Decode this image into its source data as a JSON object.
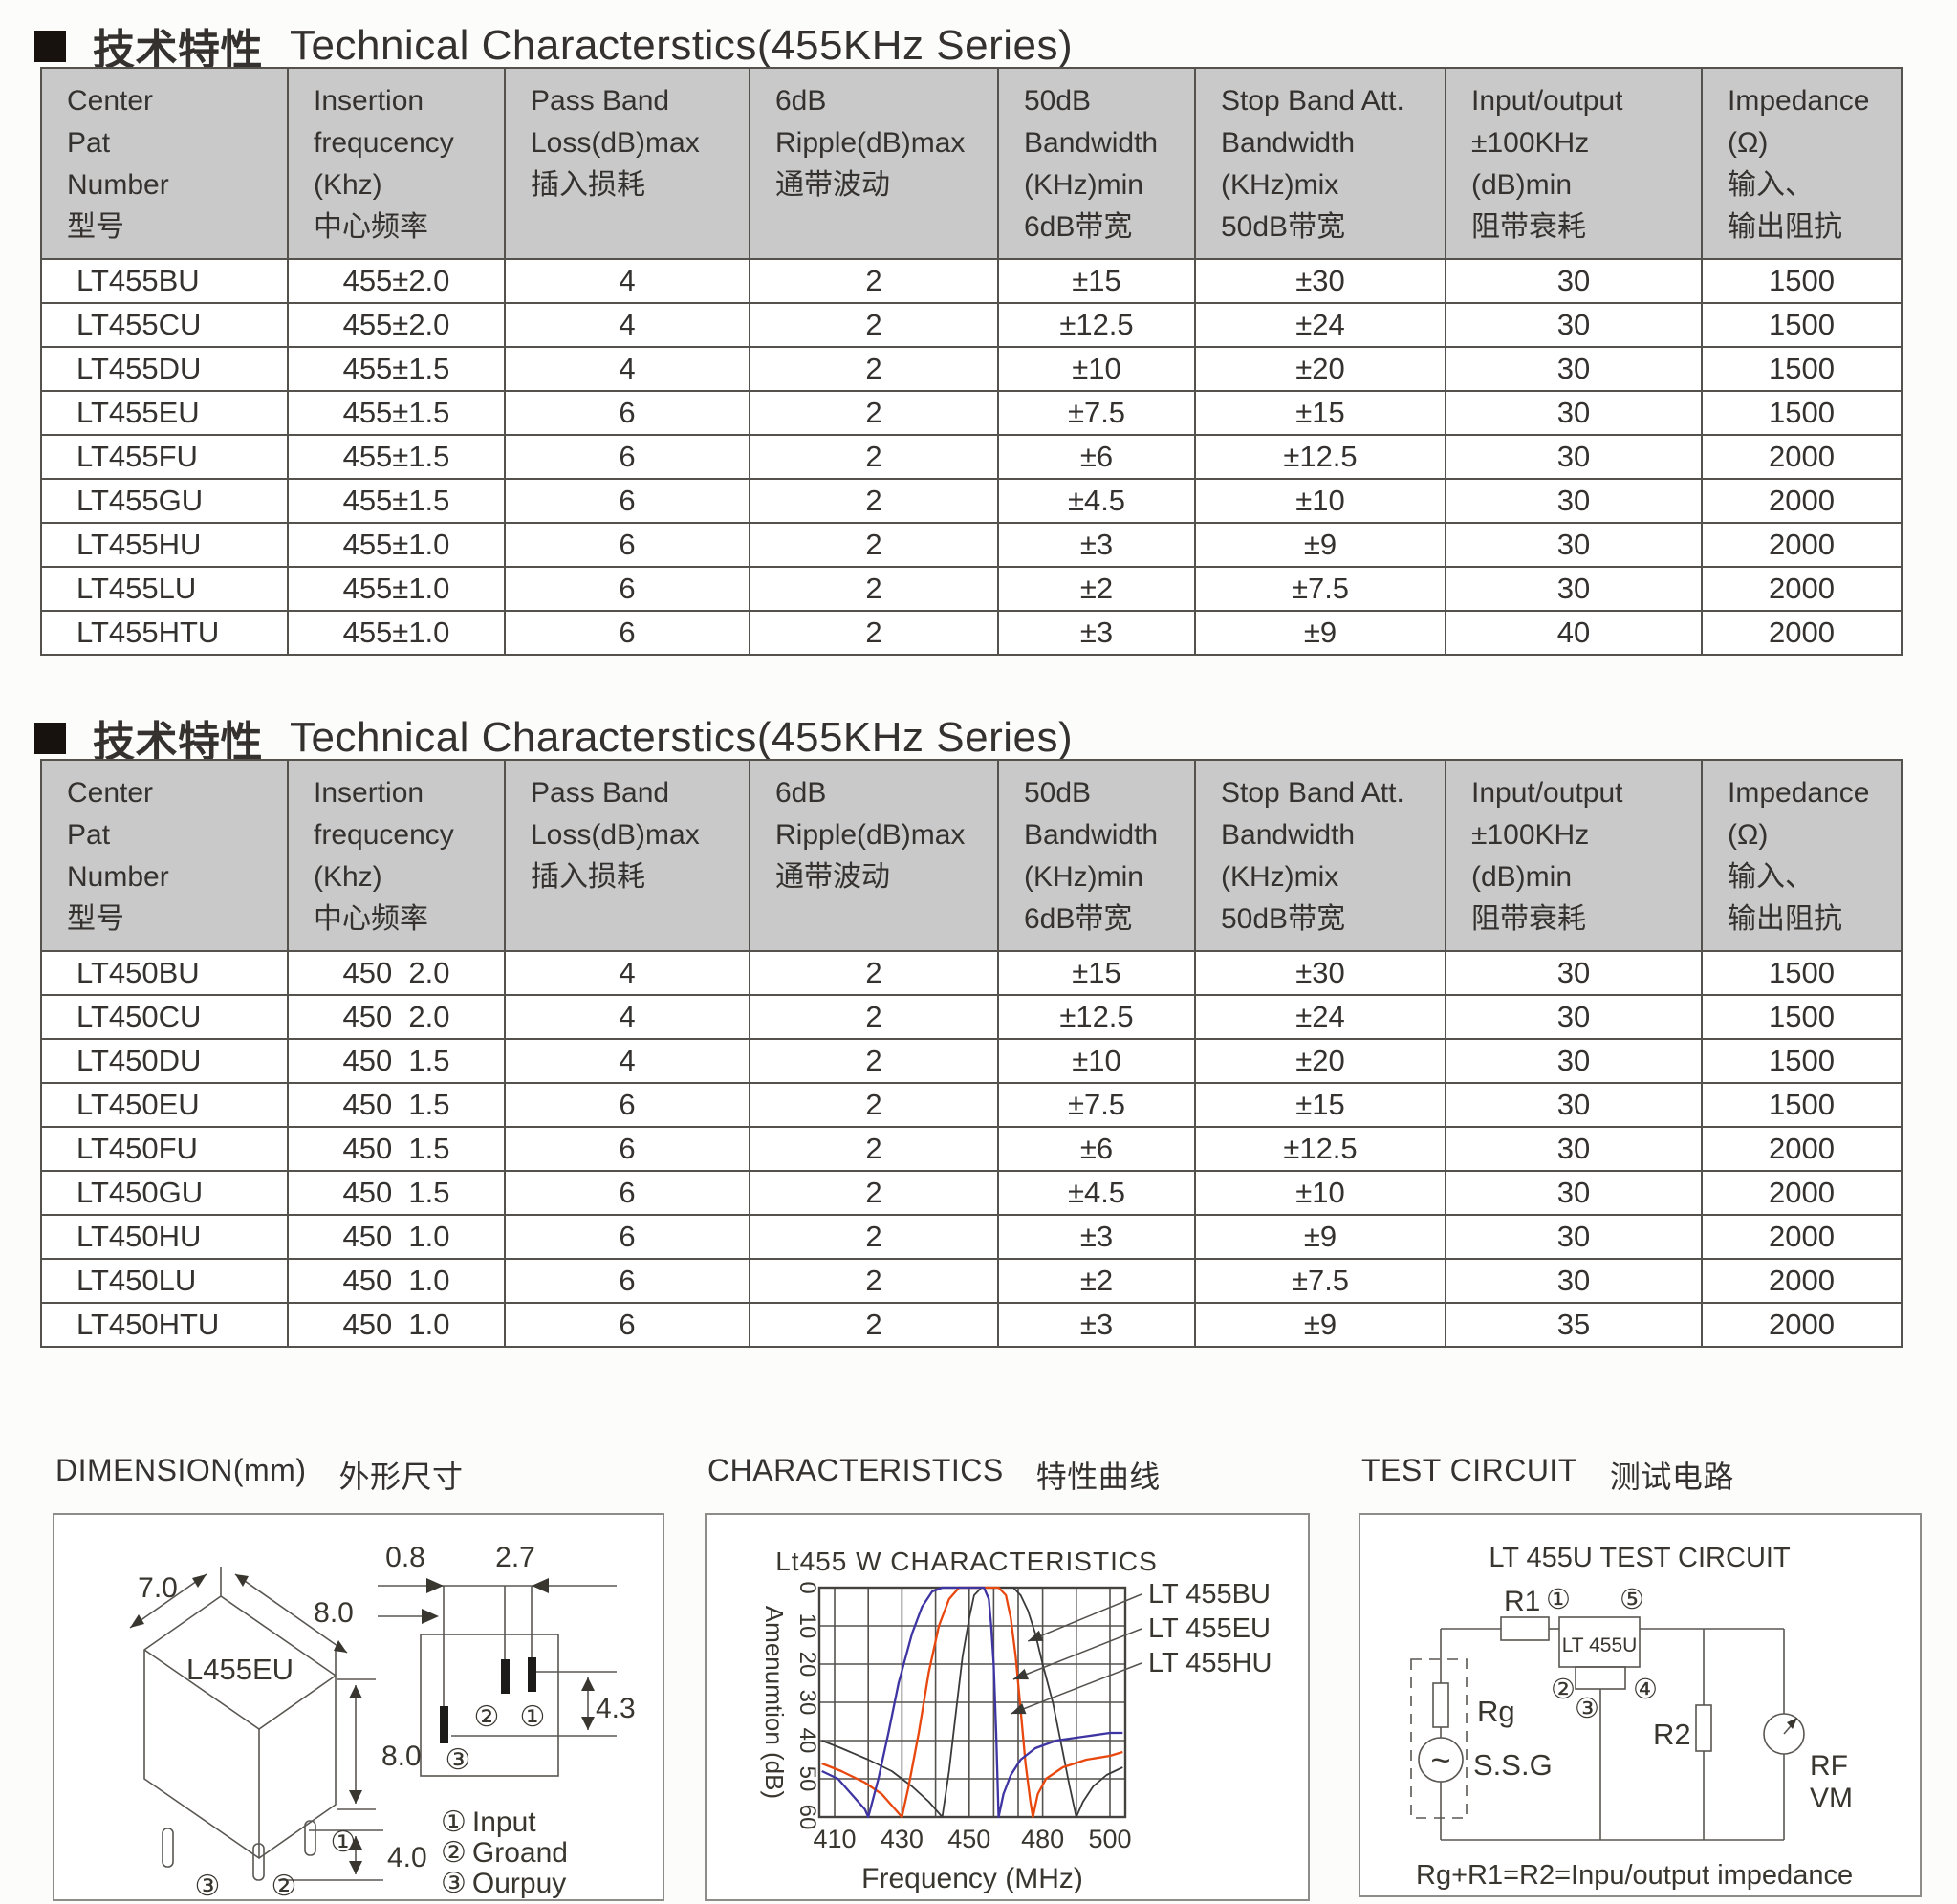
{
  "titles": {
    "t1": {
      "zh": "技术特性",
      "en": "Technical Characterstics(455KHz Series)"
    },
    "t2": {
      "zh": "技术特性",
      "en": "Technical Characterstics(455KHz Series)"
    }
  },
  "table_headers": [
    {
      "lines": [
        "Center",
        "Pat",
        "Number",
        "型号"
      ]
    },
    {
      "lines": [
        "Insertion",
        "frequcency",
        "(Khz)",
        "中心频率"
      ]
    },
    {
      "lines": [
        "Pass Band",
        "Loss(dB)max",
        "插入损耗"
      ]
    },
    {
      "lines": [
        "6dB",
        "Ripple(dB)max",
        "通带波动"
      ]
    },
    {
      "lines": [
        "50dB",
        "Bandwidth",
        "(KHz)min",
        "6dB带宽"
      ]
    },
    {
      "lines": [
        "Stop Band Att.",
        "Bandwidth",
        "(KHz)mix",
        "50dB带宽"
      ]
    },
    {
      "lines": [
        "Input/output",
        "±100KHz",
        "(dB)min",
        "阻带衰耗"
      ]
    },
    {
      "lines": [
        "Impedance",
        "(Ω)",
        "输入、",
        "输出阻抗"
      ]
    }
  ],
  "table1_rows": [
    [
      "LT455BU",
      "455±2.0",
      "4",
      "2",
      "±15",
      "±30",
      "30",
      "1500"
    ],
    [
      "LT455CU",
      "455±2.0",
      "4",
      "2",
      "±12.5",
      "±24",
      "30",
      "1500"
    ],
    [
      "LT455DU",
      "455±1.5",
      "4",
      "2",
      "±10",
      "±20",
      "30",
      "1500"
    ],
    [
      "LT455EU",
      "455±1.5",
      "6",
      "2",
      "±7.5",
      "±15",
      "30",
      "1500"
    ],
    [
      "LT455FU",
      "455±1.5",
      "6",
      "2",
      "±6",
      "±12.5",
      "30",
      "2000"
    ],
    [
      "LT455GU",
      "455±1.5",
      "6",
      "2",
      "±4.5",
      "±10",
      "30",
      "2000"
    ],
    [
      "LT455HU",
      "455±1.0",
      "6",
      "2",
      "±3",
      "±9",
      "30",
      "2000"
    ],
    [
      "LT455LU",
      "455±1.0",
      "6",
      "2",
      "±2",
      "±7.5",
      "30",
      "2000"
    ],
    [
      "LT455HTU",
      "455±1.0",
      "6",
      "2",
      "±3",
      "±9",
      "40",
      "2000"
    ]
  ],
  "table2_rows": [
    [
      "LT450BU",
      "450  2.0",
      "4",
      "2",
      "±15",
      "±30",
      "30",
      "1500"
    ],
    [
      "LT450CU",
      "450  2.0",
      "4",
      "2",
      "±12.5",
      "±24",
      "30",
      "1500"
    ],
    [
      "LT450DU",
      "450  1.5",
      "4",
      "2",
      "±10",
      "±20",
      "30",
      "1500"
    ],
    [
      "LT450EU",
      "450  1.5",
      "6",
      "2",
      "±7.5",
      "±15",
      "30",
      "1500"
    ],
    [
      "LT450FU",
      "450  1.5",
      "6",
      "2",
      "±6",
      "±12.5",
      "30",
      "2000"
    ],
    [
      "LT450GU",
      "450  1.5",
      "6",
      "2",
      "±4.5",
      "±10",
      "30",
      "2000"
    ],
    [
      "LT450HU",
      "450  1.0",
      "6",
      "2",
      "±3",
      "±9",
      "30",
      "2000"
    ],
    [
      "LT450LU",
      "450  1.0",
      "6",
      "2",
      "±2",
      "±7.5",
      "30",
      "2000"
    ],
    [
      "LT450HTU",
      "450  1.0",
      "6",
      "2",
      "±3",
      "±9",
      "35",
      "2000"
    ]
  ],
  "dimension": {
    "heading_en": "DIMENSION(mm)",
    "heading_zh": "外形尺寸",
    "box_label": "L455EU",
    "dims": {
      "width": "7.0",
      "depth": "8.0",
      "height": "8.0",
      "pin_len": "4.0",
      "pin_offset": "0.8",
      "pin_pitch": "2.7",
      "pin_span": "4.3"
    },
    "pin_marks": {
      "p1": "①",
      "p2": "②",
      "p3": "③"
    },
    "legend": [
      {
        "mark": "①",
        "label": "Input"
      },
      {
        "mark": "②",
        "label": "Groand"
      },
      {
        "mark": "③",
        "label": "Ourpuy"
      }
    ]
  },
  "characteristics": {
    "heading_en": "CHARACTERISTICS",
    "heading_zh": "特性曲线"
  },
  "chart_data": {
    "type": "line",
    "title": "Lt455 W CHARACTERISTICS",
    "xlabel": "Frequency (MHz)",
    "ylabel": "Amenumtion (dB)",
    "x_ticks": [
      410,
      430,
      450,
      480,
      500
    ],
    "y_ticks": [
      0,
      10,
      20,
      30,
      40,
      50,
      60
    ],
    "xlim": [
      404,
      506
    ],
    "ylim": [
      0,
      60
    ],
    "y_inverted": true,
    "grid": true,
    "legend_position": "right",
    "series": [
      {
        "name": "LT 455BU",
        "color": "#3a3a3a",
        "arrow_target": [
          474,
          14
        ],
        "points": [
          [
            405,
            40
          ],
          [
            412,
            42
          ],
          [
            420,
            45
          ],
          [
            427,
            48
          ],
          [
            433,
            52
          ],
          [
            438,
            56
          ],
          [
            442,
            60
          ],
          [
            444,
            48
          ],
          [
            446,
            33
          ],
          [
            448,
            18
          ],
          [
            450,
            8
          ],
          [
            452,
            2
          ],
          [
            455,
            0
          ],
          [
            468,
            0
          ],
          [
            471,
            2
          ],
          [
            474,
            6
          ],
          [
            477,
            12
          ],
          [
            480,
            20
          ],
          [
            483,
            30
          ],
          [
            486,
            43
          ],
          [
            488,
            52
          ],
          [
            490,
            60
          ],
          [
            492,
            56
          ],
          [
            495,
            52
          ],
          [
            499,
            49
          ],
          [
            505,
            47
          ]
        ]
      },
      {
        "name": "LT 455EU",
        "color": "#e8470e",
        "arrow_target": [
          468,
          24
        ],
        "points": [
          [
            405,
            46
          ],
          [
            412,
            48
          ],
          [
            419,
            51
          ],
          [
            424,
            54
          ],
          [
            428,
            58
          ],
          [
            430,
            60
          ],
          [
            432,
            52
          ],
          [
            435,
            38
          ],
          [
            438,
            22
          ],
          [
            441,
            10
          ],
          [
            444,
            3
          ],
          [
            447,
            0
          ],
          [
            462,
            0
          ],
          [
            465,
            2
          ],
          [
            467,
            8
          ],
          [
            469,
            18
          ],
          [
            471,
            32
          ],
          [
            473,
            46
          ],
          [
            475,
            56
          ],
          [
            476,
            60
          ],
          [
            478,
            54
          ],
          [
            481,
            50
          ],
          [
            486,
            47
          ],
          [
            493,
            45
          ],
          [
            500,
            44
          ],
          [
            505,
            43
          ]
        ]
      },
      {
        "name": "LT 455HU",
        "color": "#3e35a3",
        "arrow_target": [
          467,
          33
        ],
        "points": [
          [
            405,
            48
          ],
          [
            411,
            50
          ],
          [
            415,
            54
          ],
          [
            419,
            58
          ],
          [
            420,
            60
          ],
          [
            423,
            50
          ],
          [
            426,
            38
          ],
          [
            429,
            25
          ],
          [
            433,
            12
          ],
          [
            436,
            5
          ],
          [
            439,
            1
          ],
          [
            442,
            0
          ],
          [
            456,
            0
          ],
          [
            458,
            3
          ],
          [
            459,
            10
          ],
          [
            460,
            20
          ],
          [
            461,
            38
          ],
          [
            462,
            60
          ],
          [
            464,
            54
          ],
          [
            467,
            49
          ],
          [
            471,
            45
          ],
          [
            477,
            42
          ],
          [
            484,
            40
          ],
          [
            492,
            39
          ],
          [
            500,
            38
          ],
          [
            505,
            38
          ]
        ]
      }
    ]
  },
  "test_circuit": {
    "heading_en": "TEST CIRCUIT",
    "heading_zh": "测试电路",
    "title": "LT  455U TEST CIRCUIT",
    "labels": {
      "r1": "R1",
      "dut": "LT 455U",
      "rg": "Rg",
      "ssg": "S.S.G",
      "r2": "R2",
      "rf": "RF",
      "vm": "VM",
      "sine": "~",
      "p1": "①",
      "p2": "②",
      "p3": "③",
      "p4": "④",
      "p5": "⑤"
    },
    "formula": "Rg+R1=R2=Inpu/output impedance"
  }
}
